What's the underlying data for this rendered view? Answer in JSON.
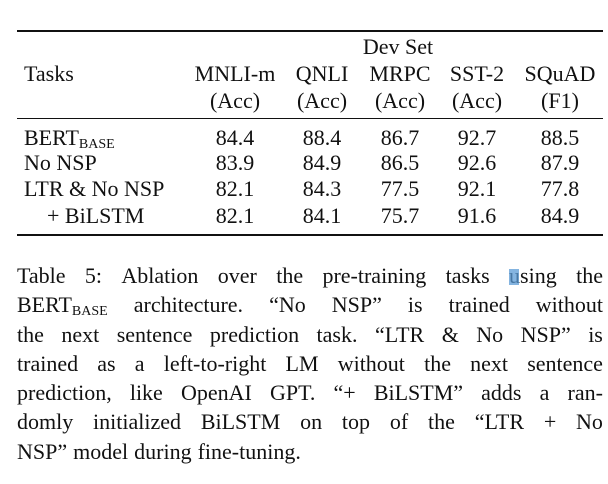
{
  "table": {
    "group_header": "Dev Set",
    "tasks_header": "Tasks",
    "columns": [
      {
        "name": "MNLI-m",
        "metric": "(Acc)"
      },
      {
        "name": "QNLI",
        "metric": "(Acc)"
      },
      {
        "name": "MRPC",
        "metric": "(Acc)"
      },
      {
        "name": "SST-2",
        "metric": "(Acc)"
      },
      {
        "name": "SQuAD",
        "metric": "(F1)"
      }
    ],
    "rows": [
      {
        "label": "BERT",
        "label_sub": "BASE",
        "values": [
          "84.4",
          "88.4",
          "86.7",
          "92.7",
          "88.5"
        ]
      },
      {
        "label": "No NSP",
        "label_sub": "",
        "values": [
          "83.9",
          "84.9",
          "86.5",
          "92.6",
          "87.9"
        ]
      },
      {
        "label": "LTR & No NSP",
        "label_sub": "",
        "values": [
          "82.1",
          "84.3",
          "77.5",
          "92.1",
          "77.8"
        ]
      },
      {
        "label": "+ BiLSTM",
        "label_sub": "",
        "values": [
          "82.1",
          "84.1",
          "75.7",
          "91.6",
          "84.9"
        ]
      }
    ]
  },
  "caption": {
    "lines": [
      [
        "Table",
        "5:",
        "Ablation",
        "over",
        "the",
        "pre-training",
        "tasks",
        "using",
        "the"
      ],
      [
        "BERT",
        "architecture.",
        "“No",
        "NSP”",
        "is",
        "trained",
        "without"
      ],
      [
        "the",
        "next",
        "sentence",
        "prediction",
        "task.",
        "“LTR",
        "&",
        "No",
        "NSP”",
        "is"
      ],
      [
        "trained",
        "as",
        "a",
        "left-to-right",
        "LM",
        "without",
        "the",
        "next",
        "sentence"
      ],
      [
        "prediction,",
        "like",
        "OpenAI",
        "GPT.",
        "“+",
        "BiLSTM”",
        "adds",
        "a",
        "ran-"
      ],
      [
        "domly",
        "initialized",
        "BiLSTM",
        "on",
        "top",
        "of",
        "the",
        "“LTR",
        "+",
        "No"
      ],
      [
        "NSP”",
        "model",
        "during",
        "fine-tuning."
      ]
    ],
    "bert_sub": "BASE"
  }
}
